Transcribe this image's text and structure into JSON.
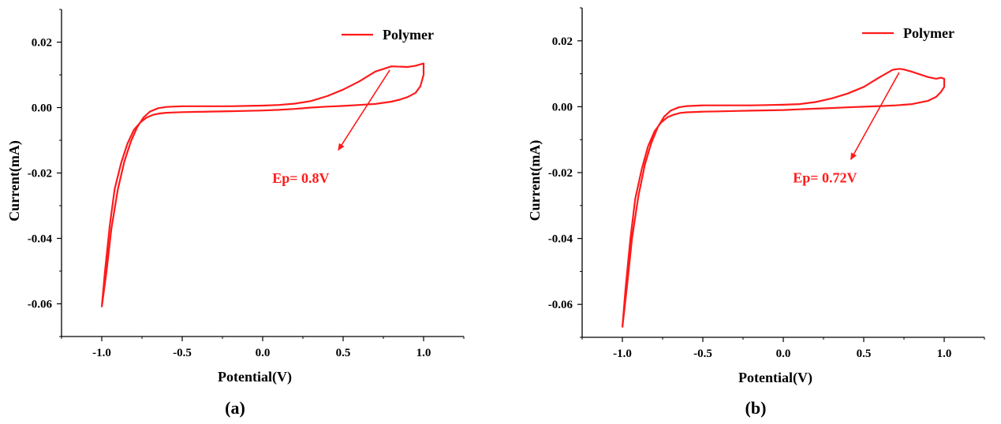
{
  "colors": {
    "series": "#ff1a1a",
    "axis": "#000000"
  },
  "chart_data": [
    {
      "type": "line",
      "panel_label": "(a)",
      "xlabel": "Potential(V)",
      "ylabel": "Current(mA)",
      "xlim": [
        -1.25,
        1.25
      ],
      "ylim": [
        -0.07,
        0.03
      ],
      "x_ticks": [
        -1.0,
        -0.5,
        0.0,
        0.5,
        1.0
      ],
      "x_tick_labels": [
        "-1.0",
        "-0.5",
        "0.0",
        "0.5",
        "1.0"
      ],
      "y_ticks": [
        0.02,
        0.0,
        -0.02,
        -0.04,
        -0.06
      ],
      "y_tick_labels": [
        "0.02",
        "0.00",
        "-0.02",
        "-0.04",
        "-0.06"
      ],
      "grid": false,
      "legend_position": "top-right",
      "series": [
        {
          "name": "Polymer",
          "color": "#ff1a1a",
          "x": [
            -1.0,
            -0.98,
            -0.95,
            -0.92,
            -0.88,
            -0.84,
            -0.8,
            -0.76,
            -0.72,
            -0.68,
            -0.64,
            -0.6,
            -0.55,
            -0.5,
            -0.4,
            -0.3,
            -0.2,
            -0.1,
            0.0,
            0.1,
            0.2,
            0.3,
            0.4,
            0.5,
            0.6,
            0.7,
            0.8,
            0.85,
            0.9,
            0.95,
            0.98,
            1.0,
            1.0,
            0.98,
            0.95,
            0.9,
            0.8,
            0.7,
            0.6,
            0.5,
            0.4,
            0.3,
            0.2,
            0.1,
            0.0,
            -0.1,
            -0.2,
            -0.3,
            -0.4,
            -0.5,
            -0.6,
            -0.65,
            -0.7,
            -0.74,
            -0.78,
            -0.82,
            -0.86,
            -0.9,
            -0.94,
            -0.97,
            -1.0
          ],
          "y": [
            -0.061,
            -0.05,
            -0.036,
            -0.025,
            -0.017,
            -0.011,
            -0.0068,
            -0.0045,
            -0.003,
            -0.0022,
            -0.0018,
            -0.0016,
            -0.0015,
            -0.0014,
            -0.0013,
            -0.0012,
            -0.0011,
            -0.001,
            -0.0009,
            -0.0007,
            -0.0004,
            0.0,
            0.0003,
            0.0005,
            0.0008,
            0.0011,
            0.0018,
            0.0024,
            0.0032,
            0.0045,
            0.0065,
            0.01,
            0.0135,
            0.0132,
            0.0128,
            0.0124,
            0.0126,
            0.011,
            0.008,
            0.0055,
            0.0035,
            0.002,
            0.0012,
            0.0008,
            0.0006,
            0.0005,
            0.0004,
            0.0004,
            0.0004,
            0.0004,
            0.0002,
            -0.0002,
            -0.0012,
            -0.003,
            -0.006,
            -0.0105,
            -0.0165,
            -0.025,
            -0.037,
            -0.05,
            -0.061
          ]
        }
      ],
      "annotation": {
        "text": "Ep= 0.8V",
        "arrow_from": [
          0.79,
          0.0115
        ],
        "arrow_to": [
          0.47,
          -0.013
        ],
        "text_at": [
          0.06,
          -0.023
        ]
      }
    },
    {
      "type": "line",
      "panel_label": "(b)",
      "xlabel": "Potential(V)",
      "ylabel": "Current(mA)",
      "xlim": [
        -1.25,
        1.25
      ],
      "ylim": [
        -0.07,
        0.03
      ],
      "x_ticks": [
        -1.0,
        -0.5,
        0.0,
        0.5,
        1.0
      ],
      "x_tick_labels": [
        "-1.0",
        "-0.5",
        "0.0",
        "0.5",
        "1.0"
      ],
      "y_ticks": [
        0.02,
        0.0,
        -0.02,
        -0.04,
        -0.06
      ],
      "y_tick_labels": [
        "0.02",
        "0.00",
        "-0.02",
        "-0.04",
        "-0.06"
      ],
      "grid": false,
      "legend_position": "top-right",
      "series": [
        {
          "name": "Polymer",
          "color": "#ff1a1a",
          "x": [
            -1.0,
            -0.98,
            -0.95,
            -0.92,
            -0.88,
            -0.84,
            -0.8,
            -0.76,
            -0.72,
            -0.68,
            -0.64,
            -0.6,
            -0.55,
            -0.5,
            -0.4,
            -0.3,
            -0.2,
            -0.1,
            0.0,
            0.1,
            0.2,
            0.3,
            0.4,
            0.5,
            0.6,
            0.7,
            0.8,
            0.9,
            0.95,
            0.98,
            1.0,
            1.0,
            0.98,
            0.95,
            0.9,
            0.85,
            0.8,
            0.75,
            0.72,
            0.68,
            0.6,
            0.5,
            0.4,
            0.3,
            0.2,
            0.1,
            0.0,
            -0.1,
            -0.2,
            -0.3,
            -0.4,
            -0.5,
            -0.6,
            -0.65,
            -0.7,
            -0.74,
            -0.78,
            -0.82,
            -0.86,
            -0.9,
            -0.94,
            -0.97,
            -1.0
          ],
          "y": [
            -0.067,
            -0.055,
            -0.04,
            -0.028,
            -0.019,
            -0.012,
            -0.0075,
            -0.0048,
            -0.0032,
            -0.0024,
            -0.0019,
            -0.0017,
            -0.0016,
            -0.0015,
            -0.0014,
            -0.0013,
            -0.0012,
            -0.0011,
            -0.001,
            -0.0008,
            -0.0006,
            -0.0004,
            -0.0002,
            0.0,
            0.0002,
            0.0004,
            0.0008,
            0.0018,
            0.003,
            0.0045,
            0.006,
            0.0085,
            0.0088,
            0.0085,
            0.009,
            0.0098,
            0.0106,
            0.0113,
            0.0115,
            0.0112,
            0.009,
            0.006,
            0.004,
            0.0025,
            0.0014,
            0.0008,
            0.0006,
            0.0005,
            0.0004,
            0.0004,
            0.0004,
            0.0004,
            0.0002,
            -0.0002,
            -0.0012,
            -0.003,
            -0.0062,
            -0.011,
            -0.0175,
            -0.027,
            -0.04,
            -0.054,
            -0.067
          ]
        }
      ],
      "annotation": {
        "text": "Ep= 0.72V",
        "arrow_from": [
          0.72,
          0.0104
        ],
        "arrow_to": [
          0.42,
          -0.016
        ],
        "text_at": [
          0.06,
          -0.023
        ]
      }
    }
  ]
}
